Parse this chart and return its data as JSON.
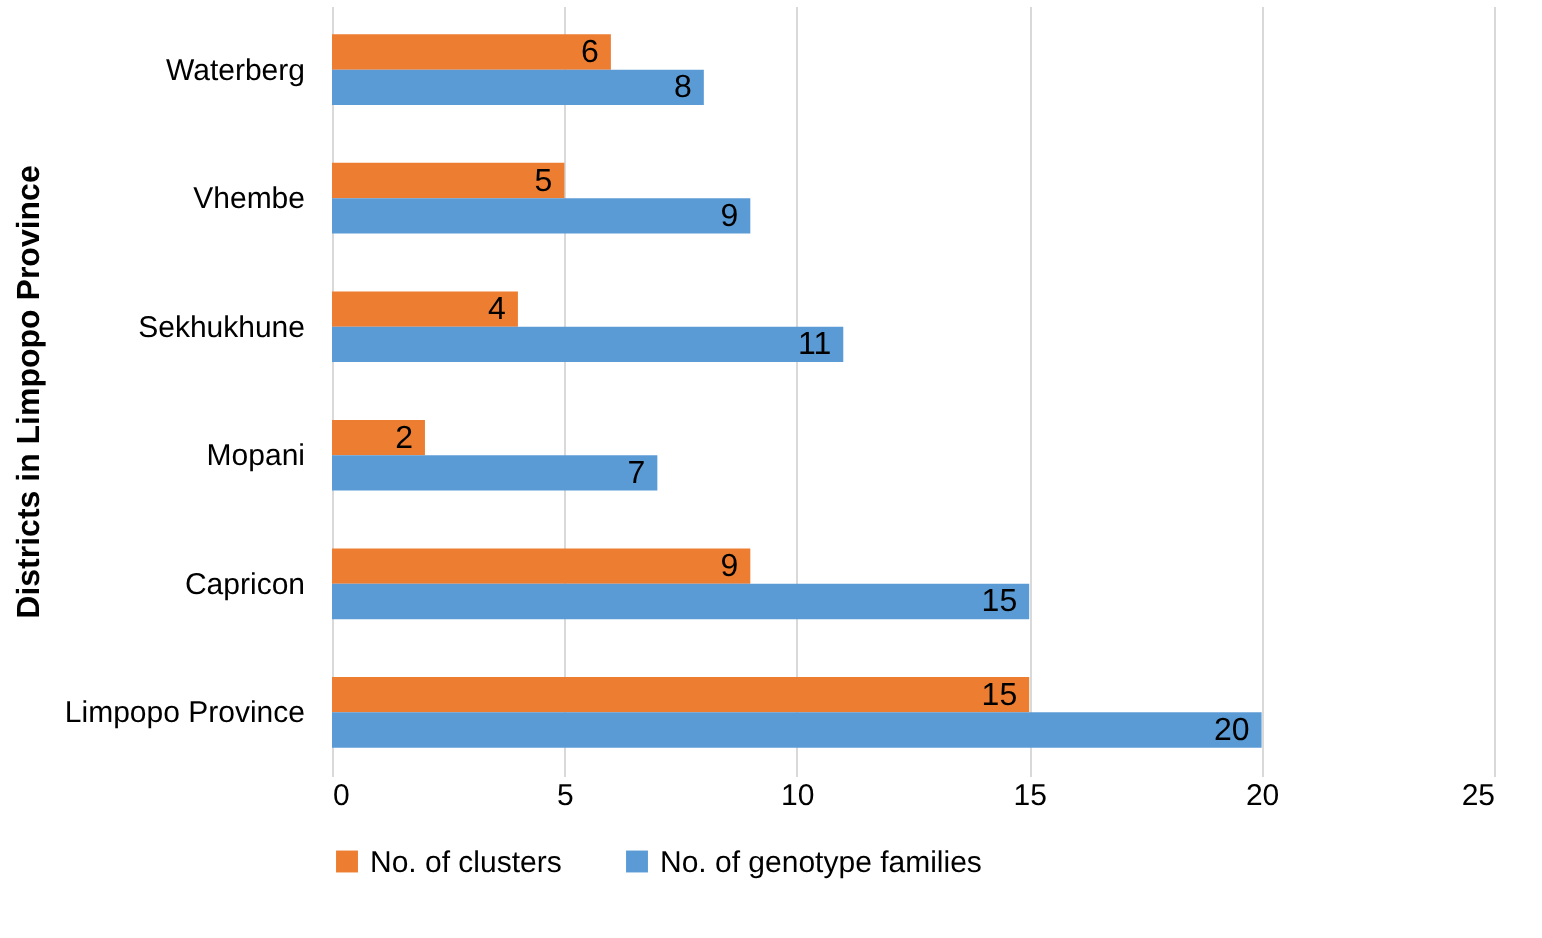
{
  "chart_data": {
    "type": "bar",
    "orientation": "horizontal",
    "ylabel": "Districts in Limpopo Province",
    "categories": [
      "Waterberg",
      "Vhembe",
      "Sekhukhune",
      "Mopani",
      "Capricon",
      "Limpopo Province"
    ],
    "series": [
      {
        "name": "No. of clusters",
        "color": "#ed7d31",
        "values": [
          6,
          5,
          4,
          2,
          9,
          15
        ]
      },
      {
        "name": "No. of genotype families",
        "color": "#5b9bd5",
        "values": [
          8,
          9,
          11,
          7,
          15,
          20
        ]
      }
    ],
    "xlim": [
      0,
      25
    ],
    "xticks": [
      0,
      5,
      10,
      15,
      20,
      25
    ],
    "grid": "x",
    "legend": "bottom",
    "data_labels": true
  }
}
